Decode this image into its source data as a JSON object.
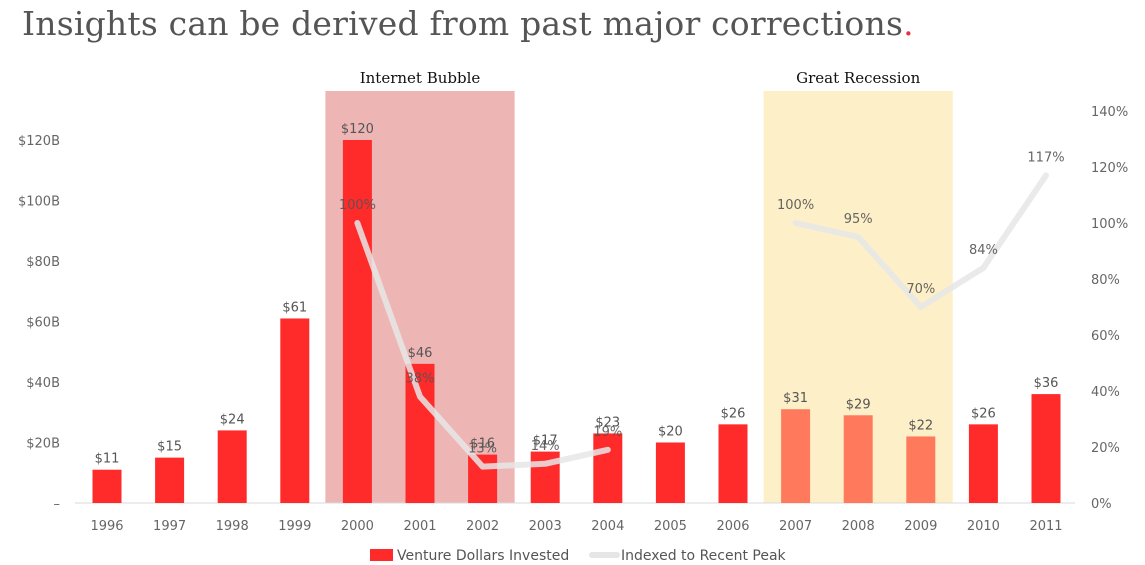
{
  "title": "Insights can be derived from past major corrections",
  "title_dot": ".",
  "chart_data": {
    "type": "bar",
    "categories": [
      "1996",
      "1997",
      "1998",
      "1999",
      "2000",
      "2001",
      "2002",
      "2003",
      "2004",
      "2005",
      "2006",
      "2007",
      "2008",
      "2009",
      "2010",
      "2011"
    ],
    "series": [
      {
        "name": "Venture Dollars Invested",
        "values": [
          11,
          15,
          24,
          61,
          120,
          46,
          16,
          17,
          23,
          20,
          26,
          31,
          29,
          22,
          26,
          36
        ],
        "labels": [
          "$11",
          "$15",
          "$24",
          "$61",
          "$120",
          "$46",
          "$16",
          "$17",
          "$23",
          "$20",
          "$26",
          "$31",
          "$29",
          "$22",
          "$26",
          "$36"
        ],
        "color": "#ff2a2a",
        "highlight_color": "#ff7a5c"
      },
      {
        "name": "Indexed to Recent Peak",
        "type": "line",
        "axis": "right",
        "segments": [
          {
            "x": [
              "2000",
              "2001",
              "2002",
              "2003",
              "2004"
            ],
            "values": [
              100,
              38,
              13,
              14,
              19
            ],
            "labels": [
              "100%",
              "38%",
              "13%",
              "14%",
              "19%"
            ]
          },
          {
            "x": [
              "2007",
              "2008",
              "2009",
              "2010",
              "2011"
            ],
            "values": [
              100,
              95,
              70,
              84,
              117
            ],
            "labels": [
              "100%",
              "95%",
              "70%",
              "84%",
              "117%"
            ]
          }
        ],
        "color": "#e6e6e6"
      }
    ],
    "left_axis": {
      "ticks": [
        "–",
        "$20B",
        "$40B",
        "$60B",
        "$80B",
        "$100B",
        "$120B"
      ],
      "tick_values": [
        0,
        20,
        40,
        60,
        80,
        100,
        120
      ],
      "ylim": [
        0,
        140
      ]
    },
    "right_axis": {
      "ticks": [
        "0%",
        "20%",
        "40%",
        "60%",
        "80%",
        "100%",
        "120%",
        "140%"
      ],
      "tick_values": [
        0,
        20,
        40,
        60,
        80,
        100,
        120,
        140
      ],
      "ylim": [
        0,
        140
      ]
    },
    "bands": [
      {
        "label": "Internet Bubble",
        "from": "2000",
        "to": "2002",
        "color": "#eeb5b5"
      },
      {
        "label": "Great Recession",
        "from": "2007",
        "to": "2009",
        "color": "#fdf0c8"
      }
    ],
    "legend": [
      "Venture Dollars Invested",
      "Indexed to Recent Peak"
    ],
    "legend_position": "bottom",
    "grid": false
  }
}
